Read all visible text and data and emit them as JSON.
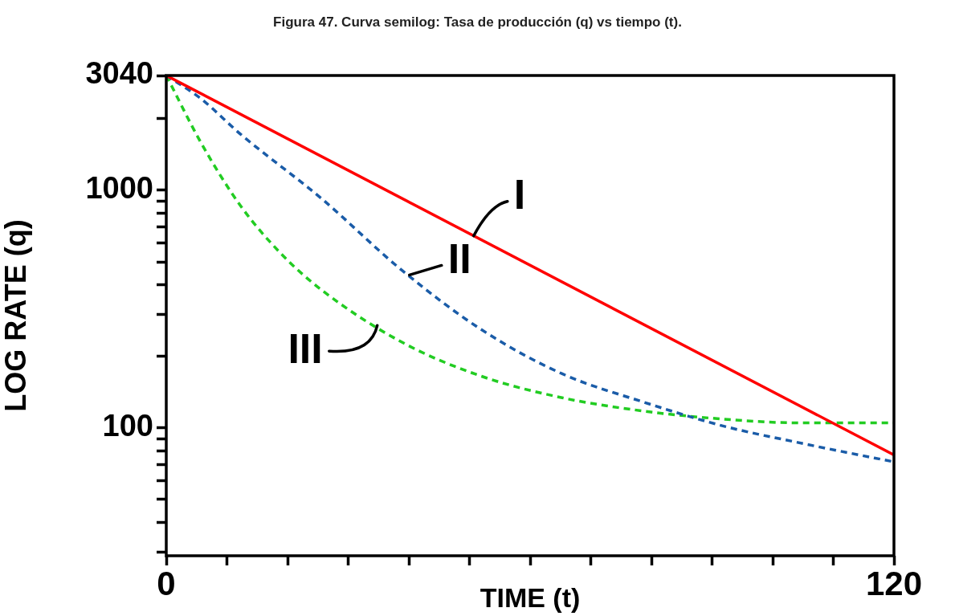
{
  "chart_data": {
    "type": "line",
    "title": "Figura 47. Curva semilog: Tasa de producción (q) vs tiempo (t).",
    "xlabel": "TIME (t)",
    "ylabel": "LOG RATE (q)",
    "log": true,
    "grid": false,
    "legend": false,
    "marker": "none",
    "xlim": [
      0,
      120
    ],
    "xticks": [
      0,
      {
        "value": 10,
        "label": null
      },
      {
        "value": 20,
        "label": null
      },
      {
        "value": 30,
        "label": null
      },
      {
        "value": 40,
        "label": null
      },
      {
        "value": 50,
        "label": null
      },
      {
        "value": 60,
        "label": null
      },
      {
        "value": 70,
        "label": null
      },
      {
        "value": 80,
        "label": null
      },
      {
        "value": 90,
        "label": null
      },
      {
        "value": 100,
        "label": null
      },
      {
        "value": 110,
        "label": null
      },
      120
    ],
    "ylim": [
      29,
      3040
    ],
    "yticks": [
      {
        "value": 30,
        "label": null
      },
      {
        "value": 40,
        "label": null
      },
      {
        "value": 50,
        "label": null
      },
      {
        "value": 60,
        "label": null
      },
      {
        "value": 70,
        "label": null
      },
      {
        "value": 80,
        "label": null
      },
      {
        "value": 90,
        "label": null
      },
      100,
      {
        "value": 200,
        "label": null
      },
      {
        "value": 300,
        "label": null
      },
      {
        "value": 400,
        "label": null
      },
      {
        "value": 500,
        "label": null
      },
      {
        "value": 600,
        "label": null
      },
      {
        "value": 700,
        "label": null
      },
      {
        "value": 800,
        "label": null
      },
      {
        "value": 900,
        "label": null
      },
      1000,
      {
        "value": 2000,
        "label": null
      },
      3040
    ],
    "series": [
      {
        "color": "#ff0000",
        "line_style": "solid",
        "x": [
          0,
          120
        ],
        "values": [
          3040,
          77
        ]
      },
      {
        "color": "#1a5ca8",
        "line_style": "dashed",
        "x": [
          0,
          5.7,
          12.3,
          25.6,
          38.8,
          52,
          65.3,
          78.5,
          91.8,
          105,
          120
        ],
        "values": [
          3040,
          2430,
          1717,
          923,
          462,
          259,
          169,
          129,
          102,
          86,
          72
        ]
      },
      {
        "color": "#22cc22",
        "line_style": "dashed",
        "x": [
          0,
          5.7,
          12.3,
          19,
          25.6,
          38.8,
          52,
          65.3,
          78.5,
          91.8,
          105,
          120
        ],
        "values": [
          3040,
          1590,
          857,
          539,
          381,
          230,
          165,
          134,
          118,
          109,
          105,
          105
        ]
      }
    ],
    "annotations": [
      {
        "text": "I",
        "x": 50.7,
        "y": 643
      },
      {
        "text": "II",
        "x": 40.1,
        "y": 440
      },
      {
        "text": "III",
        "x": 34.8,
        "y": 270
      }
    ]
  }
}
